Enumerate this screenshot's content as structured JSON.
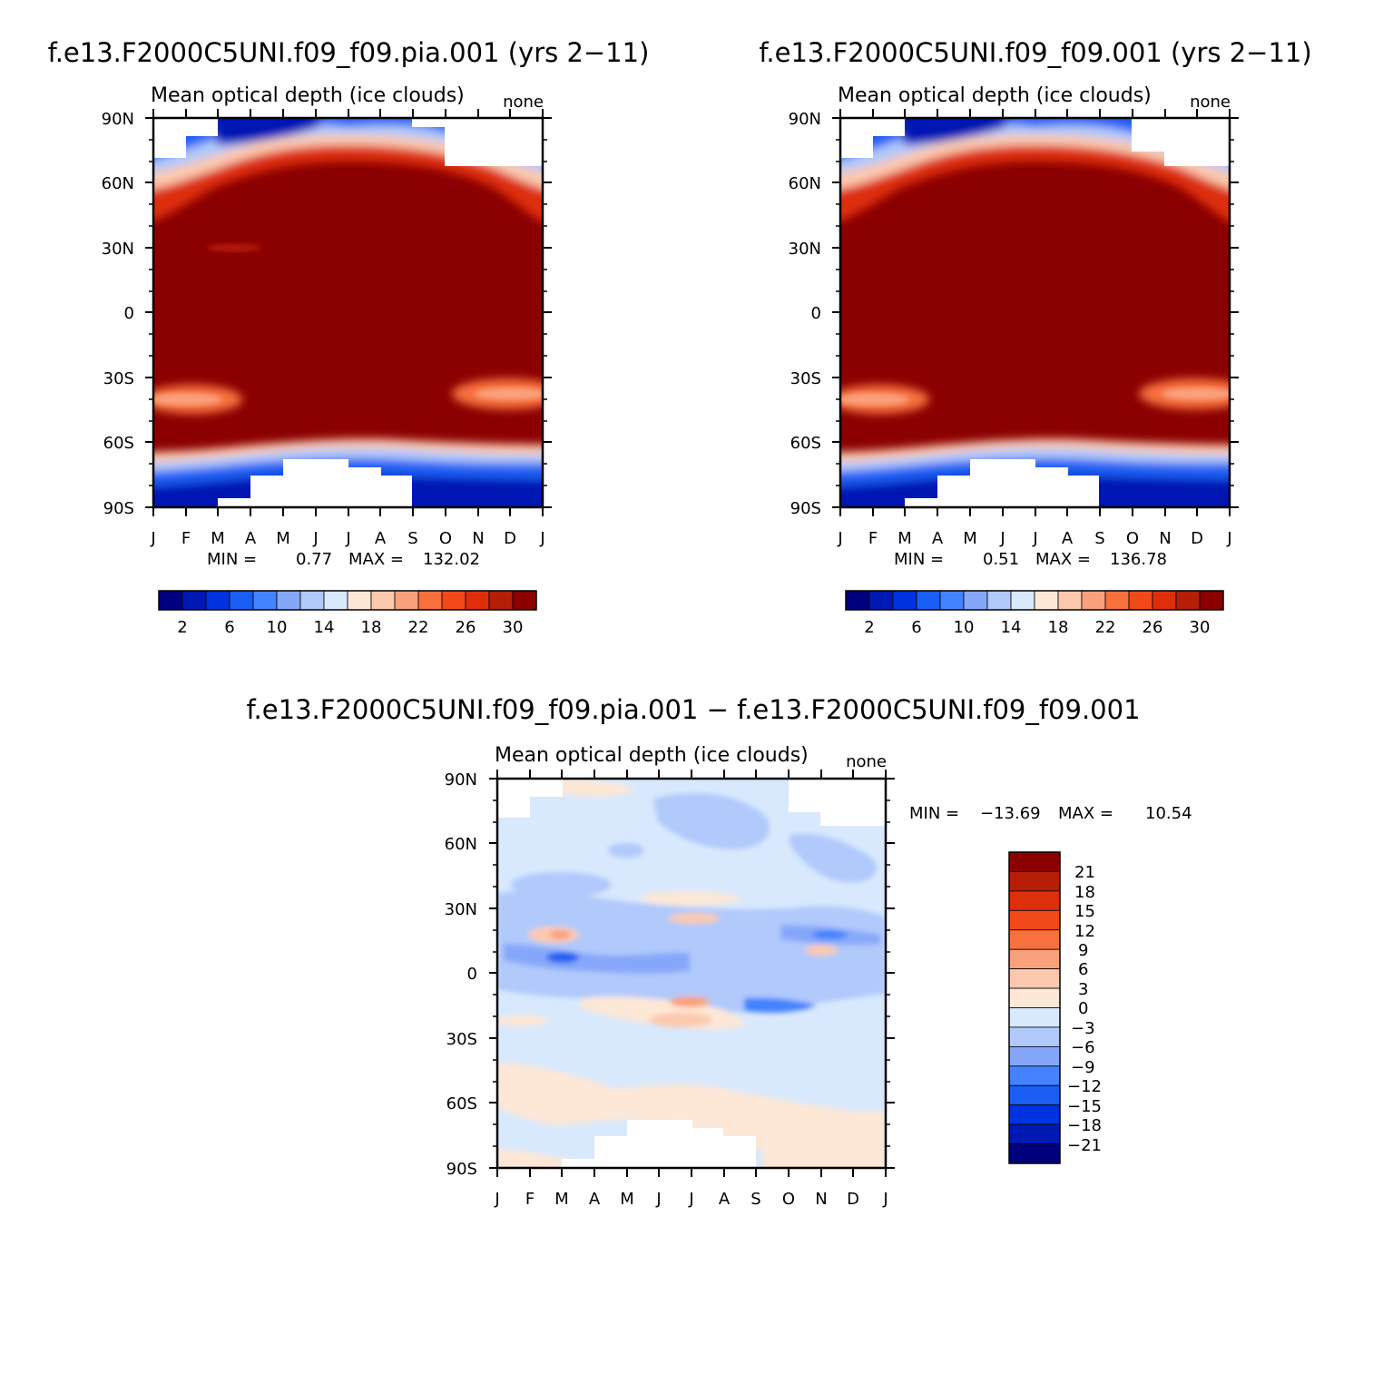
{
  "palette": {
    "optical_depth": [
      "#00007f",
      "#0019b2",
      "#0033dd",
      "#1a5ef4",
      "#4582ff",
      "#86a7f9",
      "#b1c9fb",
      "#d8e8fd",
      "#fde7d6",
      "#fcc9ae",
      "#f9a07c",
      "#f7703e",
      "#f1491a",
      "#dd2f0c",
      "#b51f08",
      "#8b0000"
    ],
    "difference": [
      "#00007f",
      "#0019b2",
      "#0033dd",
      "#1a5ef4",
      "#4582ff",
      "#86a7f9",
      "#b1c9fb",
      "#d8e8fd",
      "#fde7d6",
      "#fcc9ae",
      "#f9a07c",
      "#f7703e",
      "#f1491a",
      "#dd2f0c",
      "#b51f08",
      "#8b0000"
    ]
  },
  "chart_data": [
    {
      "type": "heatmap",
      "title": "f.e13.F2000C5UNI.f09_f09.pia.001 (yrs 2−11)",
      "subtitle": "Mean optical depth (ice clouds)",
      "corner_label": "none",
      "x_ticks": [
        "J",
        "F",
        "M",
        "A",
        "M",
        "J",
        "J",
        "A",
        "S",
        "O",
        "N",
        "D",
        "J"
      ],
      "y_ticks": [
        "90N",
        "60N",
        "30N",
        "0",
        "30S",
        "60S",
        "90S"
      ],
      "ylim": [
        -90,
        90
      ],
      "min_label": "MIN =",
      "min_value": "0.77",
      "max_label": "MAX =",
      "max_value": "132.02",
      "colorbar_labels": [
        "2",
        "6",
        "10",
        "14",
        "18",
        "22",
        "26",
        "30"
      ],
      "colorbar_levels": 16,
      "bands": [
        {
          "month": 1,
          "values": [
            {
              "lat_range": [
                -90,
                -80
              ],
              "value": 1
            },
            {
              "lat_range": [
                -80,
                -64
              ],
              "value": 8
            },
            {
              "lat_range": [
                -64,
                -45
              ],
              "value": 31
            },
            {
              "lat_range": [
                -45,
                -34
              ],
              "value": 24
            },
            {
              "lat_range": [
                -34,
                42
              ],
              "value": 31
            },
            {
              "lat_range": [
                42,
                58
              ],
              "value": 25
            },
            {
              "lat_range": [
                58,
                72
              ],
              "value": 12
            },
            {
              "lat_range": [
                72,
                82
              ],
              "value": null
            },
            {
              "lat_range": [
                82,
                90
              ],
              "value": null
            }
          ]
        },
        {
          "month": 7,
          "values": [
            {
              "lat_range": [
                -90,
                -84
              ],
              "value": null
            },
            {
              "lat_range": [
                -84,
                -62
              ],
              "value": 6
            },
            {
              "lat_range": [
                -62,
                68
              ],
              "value": 31
            },
            {
              "lat_range": [
                68,
                90
              ],
              "value": 4
            }
          ]
        }
      ]
    },
    {
      "type": "heatmap",
      "title": "f.e13.F2000C5UNI.f09_f09.001 (yrs 2−11)",
      "subtitle": "Mean optical depth (ice clouds)",
      "corner_label": "none",
      "x_ticks": [
        "J",
        "F",
        "M",
        "A",
        "M",
        "J",
        "J",
        "A",
        "S",
        "O",
        "N",
        "D",
        "J"
      ],
      "y_ticks": [
        "90N",
        "60N",
        "30N",
        "0",
        "30S",
        "60S",
        "90S"
      ],
      "ylim": [
        -90,
        90
      ],
      "min_label": "MIN =",
      "min_value": "0.51",
      "max_label": "MAX =",
      "max_value": "136.78",
      "colorbar_labels": [
        "2",
        "6",
        "10",
        "14",
        "18",
        "22",
        "26",
        "30"
      ],
      "colorbar_levels": 16,
      "bands": [
        {
          "month": 1,
          "values": [
            {
              "lat_range": [
                -90,
                -80
              ],
              "value": 1
            },
            {
              "lat_range": [
                -80,
                -64
              ],
              "value": 8
            },
            {
              "lat_range": [
                -64,
                -45
              ],
              "value": 31
            },
            {
              "lat_range": [
                -45,
                -34
              ],
              "value": 24
            },
            {
              "lat_range": [
                -34,
                42
              ],
              "value": 31
            },
            {
              "lat_range": [
                42,
                58
              ],
              "value": 25
            },
            {
              "lat_range": [
                58,
                72
              ],
              "value": 12
            },
            {
              "lat_range": [
                72,
                90
              ],
              "value": null
            }
          ]
        },
        {
          "month": 7,
          "values": [
            {
              "lat_range": [
                -90,
                -84
              ],
              "value": null
            },
            {
              "lat_range": [
                -84,
                -62
              ],
              "value": 6
            },
            {
              "lat_range": [
                -62,
                68
              ],
              "value": 31
            },
            {
              "lat_range": [
                68,
                90
              ],
              "value": 4
            }
          ]
        }
      ]
    },
    {
      "type": "heatmap",
      "title": "f.e13.F2000C5UNI.f09_f09.pia.001 − f.e13.F2000C5UNI.f09_f09.001",
      "subtitle": "Mean optical depth (ice clouds)",
      "corner_label": "none",
      "x_ticks": [
        "J",
        "F",
        "M",
        "A",
        "M",
        "J",
        "J",
        "A",
        "S",
        "O",
        "N",
        "D",
        "J"
      ],
      "y_ticks": [
        "90N",
        "60N",
        "30N",
        "0",
        "30S",
        "60S",
        "90S"
      ],
      "ylim": [
        -90,
        90
      ],
      "min_label": "MIN =",
      "min_value": "−13.69",
      "max_label": "MAX =",
      "max_value": "10.54",
      "colorbar_labels": [
        "21",
        "18",
        "15",
        "12",
        "9",
        "6",
        "3",
        "0",
        "−3",
        "−6",
        "−9",
        "−12",
        "−15",
        "−18",
        "−21"
      ],
      "colorbar_levels": 16,
      "bands": [
        {
          "lat_range": [
            60,
            90
          ],
          "value": -2
        },
        {
          "lat_range": [
            30,
            60
          ],
          "value": -4
        },
        {
          "lat_range": [
            -5,
            30
          ],
          "value": -6
        },
        {
          "lat_range": [
            -30,
            -5
          ],
          "value": 2
        },
        {
          "lat_range": [
            -60,
            -30
          ],
          "value": -1
        },
        {
          "lat_range": [
            -90,
            -60
          ],
          "value": 1
        }
      ]
    }
  ]
}
